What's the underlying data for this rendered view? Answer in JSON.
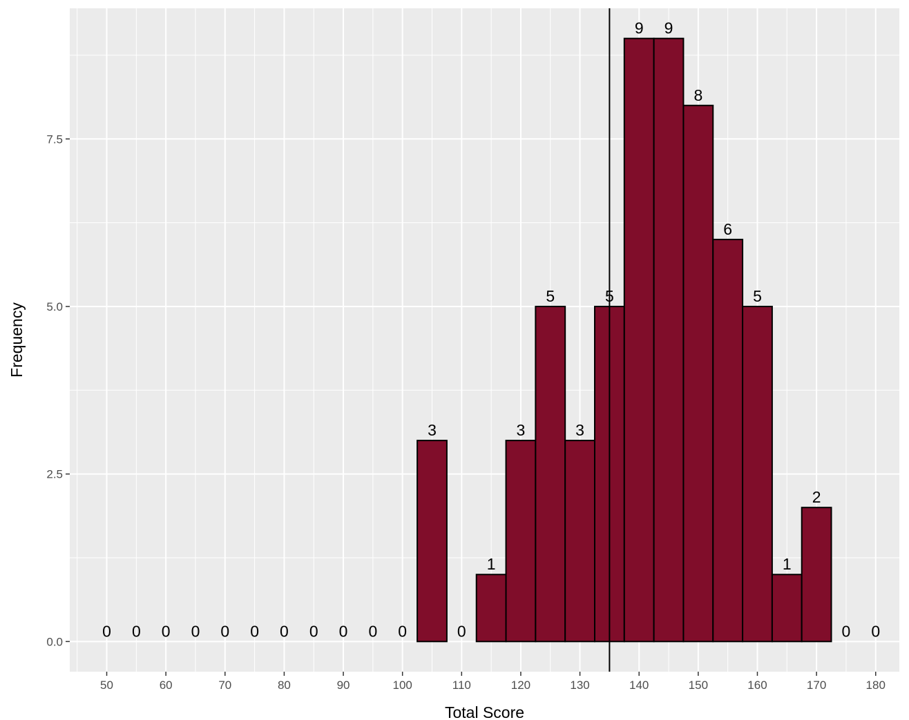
{
  "chart_data": {
    "type": "bar",
    "title": "",
    "xlabel": "Total Score",
    "ylabel": "Frequency",
    "bin_width": 5,
    "bin_centers": [
      50,
      55,
      60,
      65,
      70,
      75,
      80,
      85,
      90,
      95,
      100,
      105,
      110,
      115,
      120,
      125,
      130,
      135,
      140,
      145,
      150,
      155,
      160,
      165,
      170,
      175,
      180
    ],
    "values": [
      0,
      0,
      0,
      0,
      0,
      0,
      0,
      0,
      0,
      0,
      0,
      3,
      0,
      1,
      3,
      5,
      3,
      5,
      9,
      9,
      8,
      6,
      5,
      1,
      2,
      0,
      0
    ],
    "value_labels": [
      "0",
      "0",
      "0",
      "0",
      "0",
      "0",
      "0",
      "0",
      "0",
      "0",
      "0",
      "3",
      "0",
      "1",
      "3",
      "5",
      "3",
      "5",
      "9",
      "9",
      "8",
      "6",
      "5",
      "1",
      "2",
      "0",
      "0"
    ],
    "x_ticks": [
      50,
      60,
      70,
      80,
      90,
      100,
      110,
      120,
      130,
      140,
      150,
      160,
      170,
      180
    ],
    "x_tick_labels": [
      "50",
      "60",
      "70",
      "80",
      "90",
      "100",
      "110",
      "120",
      "130",
      "140",
      "150",
      "160",
      "170",
      "180"
    ],
    "y_ticks": [
      0,
      2.5,
      5,
      7.5
    ],
    "y_tick_labels": [
      "0.0",
      "2.5",
      "5.0",
      "7.5"
    ],
    "xlim": [
      43.75,
      184.0
    ],
    "ylim": [
      -0.45,
      9.45
    ],
    "vline_x": 135,
    "bar_fill": "#800d2a",
    "bar_outline": "#000000",
    "panel_background": "#ebebeb",
    "grid_color": "#ffffff",
    "grid": true,
    "legend": "none"
  }
}
